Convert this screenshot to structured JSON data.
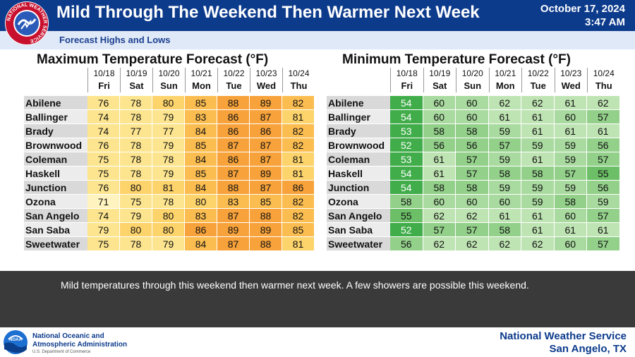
{
  "header": {
    "title": "Mild Through The Weekend Then Warmer Next Week",
    "date": "October 17, 2024",
    "time": "3:47 AM",
    "subtitle": "Forecast Highs and Lows",
    "logo_text": "NATIONAL WEATHER SERVICE"
  },
  "dates": [
    "10/18",
    "10/19",
    "10/20",
    "10/21",
    "10/22",
    "10/23",
    "10/24"
  ],
  "days": [
    "Fri",
    "Sat",
    "Sun",
    "Mon",
    "Tue",
    "Wed",
    "Thu"
  ],
  "cities": [
    "Abilene",
    "Ballinger",
    "Brady",
    "Brownwood",
    "Coleman",
    "Haskell",
    "Junction",
    "Ozona",
    "San Angelo",
    "San Saba",
    "Sweetwater"
  ],
  "max_table": {
    "title": "Maximum Temperature Forecast (°F)",
    "rows": [
      [
        76,
        78,
        80,
        85,
        88,
        89,
        82
      ],
      [
        74,
        78,
        79,
        83,
        86,
        87,
        81
      ],
      [
        74,
        77,
        77,
        84,
        86,
        86,
        82
      ],
      [
        76,
        78,
        79,
        85,
        87,
        87,
        82
      ],
      [
        75,
        78,
        78,
        84,
        86,
        87,
        81
      ],
      [
        75,
        78,
        79,
        85,
        87,
        89,
        81
      ],
      [
        76,
        80,
        81,
        84,
        88,
        87,
        86
      ],
      [
        71,
        75,
        78,
        80,
        83,
        85,
        82
      ],
      [
        74,
        79,
        80,
        83,
        87,
        88,
        82
      ],
      [
        79,
        80,
        80,
        86,
        89,
        89,
        85
      ],
      [
        75,
        78,
        79,
        84,
        87,
        88,
        81
      ]
    ]
  },
  "min_table": {
    "title": "Minimum Temperature Forecast (°F)",
    "rows": [
      [
        54,
        60,
        60,
        62,
        62,
        61,
        62
      ],
      [
        54,
        60,
        60,
        61,
        61,
        60,
        57
      ],
      [
        53,
        58,
        58,
        59,
        61,
        61,
        61
      ],
      [
        52,
        56,
        56,
        57,
        59,
        59,
        56
      ],
      [
        53,
        61,
        57,
        59,
        61,
        59,
        57
      ],
      [
        54,
        61,
        57,
        58,
        58,
        57,
        55
      ],
      [
        54,
        58,
        58,
        59,
        59,
        59,
        56
      ],
      [
        58,
        60,
        60,
        60,
        59,
        58,
        59
      ],
      [
        55,
        62,
        62,
        61,
        61,
        60,
        57
      ],
      [
        52,
        57,
        57,
        58,
        61,
        61,
        61
      ],
      [
        56,
        62,
        62,
        62,
        62,
        60,
        57
      ]
    ]
  },
  "description": "Mild temperatures through this weekend then warmer next week.  A few showers are possible this weekend.",
  "footer": {
    "noaa_line1": "National Oceanic and",
    "noaa_line2": "Atmospheric Administration",
    "noaa_dept": "U.S. Department of Commerce",
    "noaa_logo_text": "NOAA",
    "nws_line1": "National Weather Service",
    "nws_line2": "San Angelo, TX"
  },
  "colors": {
    "header_blue": "#0d3b8c",
    "city_bg": "#d9d9d9"
  }
}
